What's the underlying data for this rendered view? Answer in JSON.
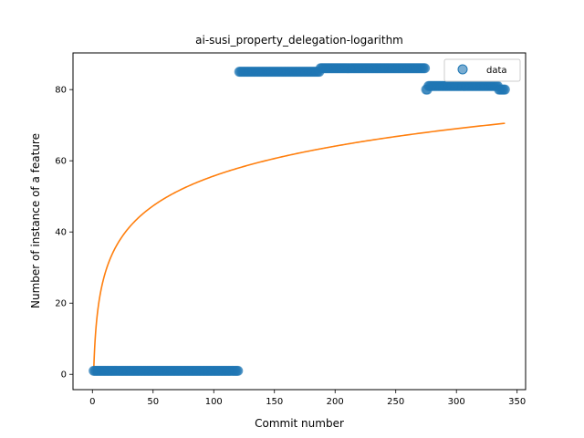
{
  "chart_data": {
    "type": "scatter",
    "title": "ai-susi_property_delegation-logarithm",
    "xlabel": "Commit number",
    "ylabel": "Number of instance of a feature",
    "xlim": [
      -16,
      357
    ],
    "ylim": [
      -4.3,
      90.3
    ],
    "xticks": [
      0,
      50,
      100,
      150,
      200,
      250,
      300,
      350
    ],
    "yticks": [
      0,
      20,
      40,
      60,
      80
    ],
    "grid": false,
    "legend": {
      "position": "top-right",
      "entries": [
        "data"
      ]
    },
    "series": [
      {
        "name": "data",
        "kind": "scatter",
        "color": "#1f77b4",
        "segments": [
          {
            "x_start": 1,
            "x_end": 120,
            "y": 1
          },
          {
            "x_start": 121,
            "x_end": 187,
            "y": 85
          },
          {
            "x_start": 188,
            "x_end": 274,
            "y": 86
          },
          {
            "x_start": 275,
            "x_end": 276,
            "y": 80
          },
          {
            "x_start": 277,
            "x_end": 334,
            "y": 81
          },
          {
            "x_start": 335,
            "x_end": 340,
            "y": 80
          }
        ]
      },
      {
        "kind": "line",
        "color": "#ff7f0e",
        "function": "logarithm",
        "a": 12.1,
        "b": 0.0,
        "x_range": [
          1,
          340
        ]
      }
    ]
  }
}
